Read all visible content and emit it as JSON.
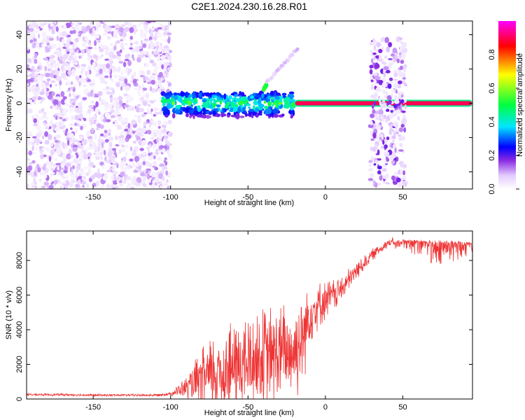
{
  "figure_title": "C2E1.2024.230.16.28.R01",
  "chart_data": [
    {
      "type": "heatmap",
      "title": "C2E1.2024.230.16.28.R01",
      "xlabel": "Height of straight line (km)",
      "ylabel": "Frequency (Hz)",
      "xlim": [
        -193,
        95
      ],
      "ylim": [
        -50,
        48
      ],
      "xticks": [
        -150,
        -100,
        -50,
        0,
        50
      ],
      "yticks": [
        -40,
        -20,
        0,
        20,
        40
      ],
      "colorbar": {
        "label": "Normalized spectral amplitude",
        "range": [
          0,
          1
        ],
        "ticks": [
          "0.0",
          "0.2",
          "0.4",
          "0.6",
          "0.8"
        ],
        "tick_values": [
          0,
          0.2,
          0.4,
          0.6,
          0.8
        ],
        "colormap": "white-purple-blue-cyan-green-yellow-red-magenta",
        "stops": [
          "#ffffff",
          "#e4ccff",
          "#8a2be2",
          "#0000ff",
          "#00e5ff",
          "#00ff40",
          "#ffff00",
          "#ff0000",
          "#ff00ff"
        ]
      },
      "regions": [
        {
          "x": [
            -193,
            -100
          ],
          "freq": [
            -50,
            48
          ],
          "amplitude": [
            0.02,
            0.14
          ]
        },
        {
          "x": [
            -105,
            -20
          ],
          "freq": [
            -8,
            6
          ],
          "amplitude": [
            0.15,
            0.55
          ]
        },
        {
          "x": [
            -20,
            95
          ],
          "freq": [
            0,
            0
          ],
          "amplitude": [
            0.9,
            1.0
          ]
        },
        {
          "x": [
            29,
            52
          ],
          "freq": [
            -48,
            38
          ],
          "amplitude": [
            0.03,
            0.2
          ]
        }
      ],
      "features": [
        {
          "x": [
            -40,
            -38
          ],
          "freq": [
            8,
            11
          ],
          "amplitude": 0.5
        },
        {
          "x": [
            -38,
            -18
          ],
          "freq": [
            12,
            32
          ],
          "amplitude": 0.05
        }
      ]
    },
    {
      "type": "line",
      "xlabel": "Height of straight line (km)",
      "ylabel": "SNR (10 * v/v)",
      "xlim": [
        -193,
        95
      ],
      "ylim": [
        0,
        9700
      ],
      "xticks": [
        -150,
        -100,
        -50,
        0,
        50
      ],
      "yticks": [
        0,
        2000,
        4000,
        6000,
        8000
      ],
      "color": "#ee3333",
      "x": [
        -190,
        -170,
        -150,
        -130,
        -110,
        -100,
        -90,
        -80,
        -70,
        -60,
        -50,
        -40,
        -30,
        -20,
        -15,
        -10,
        -5,
        0,
        10,
        20,
        30,
        40,
        50,
        60,
        70,
        80,
        90,
        95
      ],
      "values": [
        250,
        250,
        220,
        220,
        220,
        300,
        650,
        1100,
        1500,
        1800,
        2100,
        2400,
        2600,
        2800,
        3500,
        5000,
        5400,
        5700,
        6300,
        7400,
        8300,
        9000,
        9150,
        9150,
        9100,
        9100,
        9000,
        9000
      ],
      "spread": [
        80,
        80,
        80,
        80,
        80,
        120,
        700,
        2000,
        3000,
        3200,
        3300,
        3300,
        3300,
        3200,
        3200,
        2200,
        1500,
        1300,
        900,
        600,
        400,
        300,
        250,
        450,
        700,
        700,
        400,
        300
      ]
    }
  ]
}
